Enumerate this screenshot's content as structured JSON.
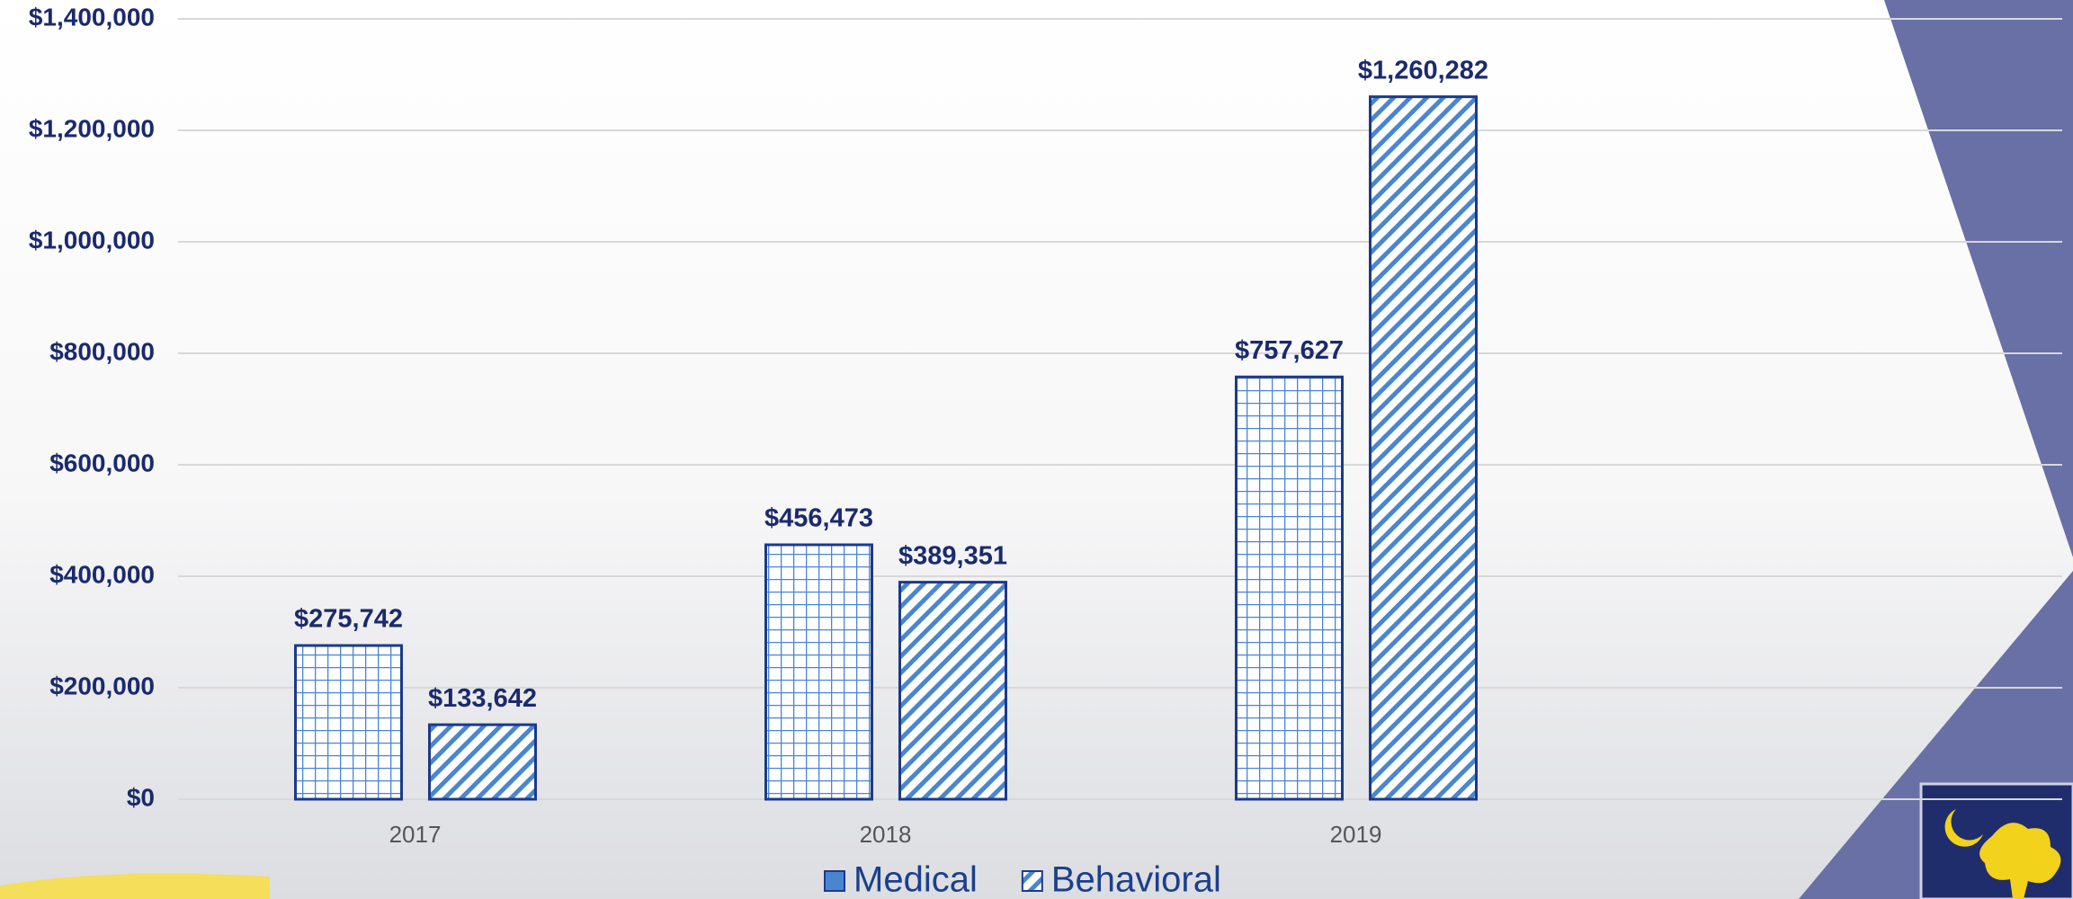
{
  "chart_data": {
    "type": "bar",
    "categories": [
      "2017",
      "2018",
      "2019"
    ],
    "series": [
      {
        "name": "Medical",
        "color": "#4a86d0",
        "pattern": "grid",
        "values": [
          275742,
          456473,
          757627
        ],
        "value_labels": [
          "$275,742",
          "$456,473",
          "$757,627"
        ]
      },
      {
        "name": "Behavioral",
        "color": "#4a86d0",
        "pattern": "diagonal",
        "values": [
          133642,
          389351,
          1260282
        ],
        "value_labels": [
          "$133,642",
          "$389,351",
          "$1,260,282"
        ]
      }
    ],
    "ylim": [
      0,
      1400000
    ],
    "yticks": [
      {
        "value": 0,
        "label": "$0"
      },
      {
        "value": 200000,
        "label": "$200,000"
      },
      {
        "value": 400000,
        "label": "$400,000"
      },
      {
        "value": 600000,
        "label": "$600,000"
      },
      {
        "value": 800000,
        "label": "$800,000"
      },
      {
        "value": 1000000,
        "label": "$1,000,000"
      },
      {
        "value": 1200000,
        "label": "$1,200,000"
      },
      {
        "value": 1400000,
        "label": "$1,400,000"
      }
    ],
    "grid": true
  }
}
